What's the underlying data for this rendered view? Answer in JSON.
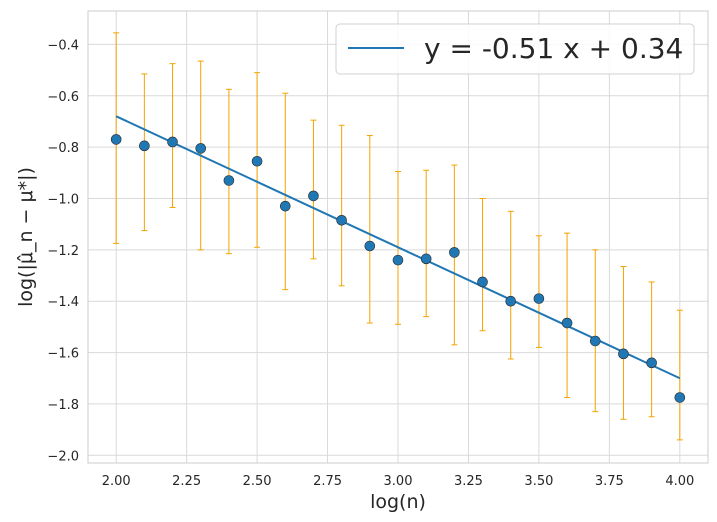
{
  "chart_data": {
    "type": "scatter",
    "xlabel": "log(n)",
    "ylabel": "log(|μ̂_n − μ*|)",
    "xlim": [
      1.9,
      4.1
    ],
    "ylim": [
      -2.03,
      -0.27
    ],
    "grid": true,
    "legend_position": "top-right",
    "x_ticks": [
      2.0,
      2.25,
      2.5,
      2.75,
      3.0,
      3.25,
      3.5,
      3.75,
      4.0
    ],
    "x_tick_labels": [
      "2.00",
      "2.25",
      "2.50",
      "2.75",
      "3.00",
      "3.25",
      "3.50",
      "3.75",
      "4.00"
    ],
    "y_ticks": [
      -2.0,
      -1.8,
      -1.6,
      -1.4,
      -1.2,
      -1.0,
      -0.8,
      -0.6,
      -0.4
    ],
    "y_tick_labels": [
      "−2.0",
      "−1.8",
      "−1.6",
      "−1.4",
      "−1.2",
      "−1.0",
      "−0.8",
      "−0.6",
      "−0.4"
    ],
    "points": {
      "x": [
        2.0,
        2.1,
        2.2,
        2.3,
        2.4,
        2.5,
        2.6,
        2.7,
        2.8,
        2.9,
        3.0,
        3.1,
        3.2,
        3.3,
        3.4,
        3.5,
        3.6,
        3.7,
        3.8,
        3.9,
        4.0
      ],
      "y": [
        -0.77,
        -0.795,
        -0.78,
        -0.805,
        -0.93,
        -0.855,
        -1.03,
        -0.99,
        -1.085,
        -1.185,
        -1.24,
        -1.235,
        -1.21,
        -1.325,
        -1.4,
        -1.39,
        -1.485,
        -1.555,
        -1.605,
        -1.64,
        -1.775
      ],
      "err_low": [
        -1.175,
        -1.125,
        -1.035,
        -1.2,
        -1.215,
        -1.19,
        -1.355,
        -1.235,
        -1.34,
        -1.485,
        -1.49,
        -1.46,
        -1.57,
        -1.515,
        -1.625,
        -1.58,
        -1.775,
        -1.83,
        -1.86,
        -1.85,
        -1.94
      ],
      "err_high": [
        -0.355,
        -0.515,
        -0.475,
        -0.465,
        -0.575,
        -0.51,
        -0.59,
        -0.695,
        -0.715,
        -0.755,
        -0.895,
        -0.89,
        -0.87,
        -1.0,
        -1.05,
        -1.145,
        -1.135,
        -1.2,
        -1.265,
        -1.325,
        -1.435
      ],
      "color": "#1f77b4",
      "errorbar_color": "#f5a300"
    },
    "fit": {
      "label": "y = -0.51 x + 0.34",
      "slope": -0.51,
      "intercept": 0.34,
      "x_range": [
        2.0,
        4.0
      ],
      "color": "#1f77b4"
    }
  }
}
